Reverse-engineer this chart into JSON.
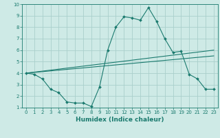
{
  "xlabel": "Humidex (Indice chaleur)",
  "xlim": [
    -0.5,
    23.5
  ],
  "ylim": [
    1,
    10
  ],
  "xticks": [
    0,
    1,
    2,
    3,
    4,
    5,
    6,
    7,
    8,
    9,
    10,
    11,
    12,
    13,
    14,
    15,
    16,
    17,
    18,
    19,
    20,
    21,
    22,
    23
  ],
  "yticks": [
    1,
    2,
    3,
    4,
    5,
    6,
    7,
    8,
    9,
    10
  ],
  "bg_color": "#ceeae6",
  "line_color": "#1a7a6e",
  "grid_color": "#aacfcb",
  "curve1_x": [
    0,
    1,
    2,
    3,
    4,
    5,
    6,
    7,
    8,
    9,
    10,
    11,
    12,
    13,
    14,
    15,
    16,
    17,
    18,
    19,
    20,
    21,
    22,
    23
  ],
  "curve1_y": [
    4.0,
    3.9,
    3.5,
    2.6,
    2.3,
    1.5,
    1.4,
    1.4,
    1.1,
    2.8,
    6.0,
    8.0,
    8.9,
    8.8,
    8.6,
    9.7,
    8.5,
    7.0,
    5.8,
    5.9,
    3.9,
    3.5,
    2.6,
    2.6
  ],
  "trend1_x": [
    0,
    23
  ],
  "trend1_y": [
    4.0,
    6.0
  ],
  "trend2_x": [
    0,
    23
  ],
  "trend2_y": [
    4.0,
    5.5
  ],
  "tick_fontsize": 5.0,
  "xlabel_fontsize": 6.5
}
